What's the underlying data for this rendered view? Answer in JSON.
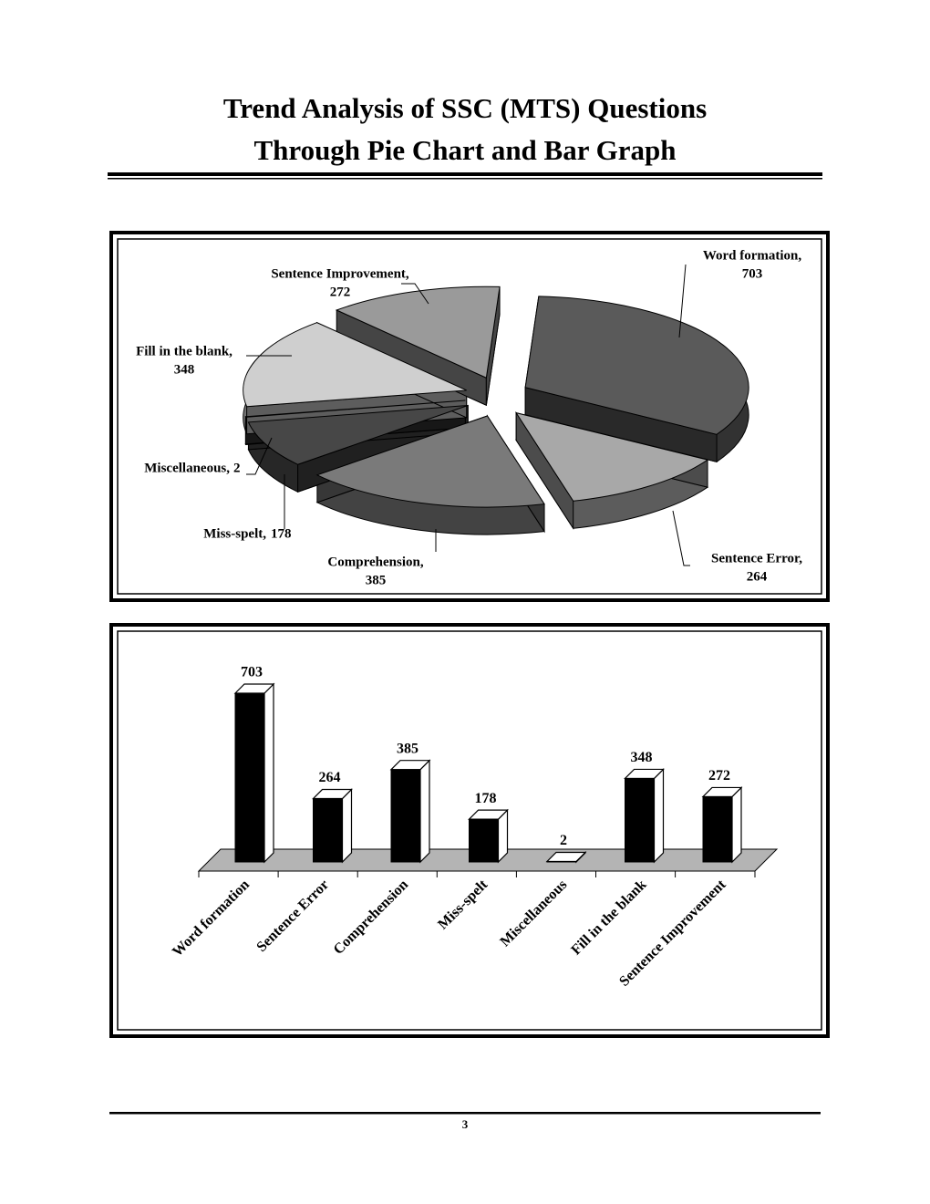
{
  "header": {
    "title": [
      "Trend Analysis of SSC (MTS) Questions",
      "Through Pie Chart and Bar Graph"
    ]
  },
  "chart_data": [
    {
      "type": "pie",
      "categories": [
        "Word formation,",
        "Sentence Error,",
        "Comprehension,",
        "Miss-spelt,",
        "Miscellaneous,",
        "Fill in the blank,",
        "Sentence Improvement,"
      ],
      "values": [
        703,
        264,
        385,
        178,
        2,
        348,
        272
      ],
      "colors": [
        "#5a5a5a",
        "#a8a8a8",
        "#7a7a7a",
        "#474747",
        "#333333",
        "#cfcfcf",
        "#9a9a9a"
      ]
    },
    {
      "type": "bar",
      "categories": [
        "Word formation",
        "Sentence Error",
        "Comprehension",
        "Miss-spelt",
        "Miscellaneous",
        "Fill in the blank",
        "Sentence Improvement"
      ],
      "values": [
        703,
        264,
        385,
        178,
        2,
        348,
        272
      ],
      "color": "#000000"
    }
  ],
  "footer": {
    "page_number": 3
  }
}
